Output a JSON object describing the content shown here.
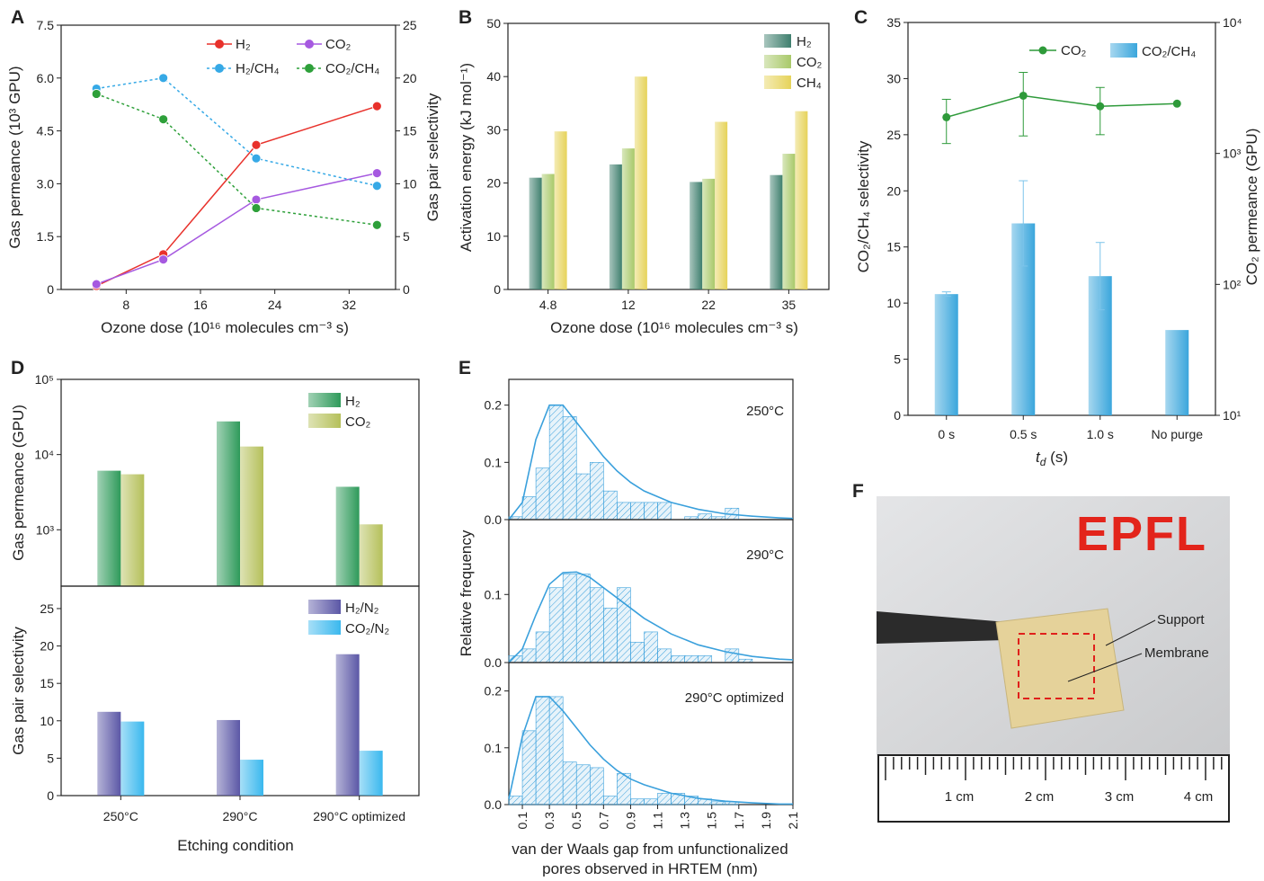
{
  "chart_data": [
    {
      "label": "A",
      "type": "line",
      "xlabel": "Ozone dose (10¹⁶ molecules cm⁻³ s)",
      "ylabel": "Gas permeance (10³ GPU)",
      "y2label": "Gas pair selectivity",
      "x": [
        4.8,
        12,
        22,
        35
      ],
      "xlim": [
        1,
        37
      ],
      "xticks": [
        8,
        16,
        24,
        32
      ],
      "ylim": [
        0,
        7.5
      ],
      "yticks": [
        0,
        1.5,
        {
          "value": 3,
          "label": "3.0"
        },
        4.5,
        {
          "value": 6,
          "label": "6.0"
        },
        7.5
      ],
      "y2lim": [
        0,
        25
      ],
      "y2ticks": [
        0,
        5,
        10,
        15,
        20,
        25
      ],
      "series": [
        {
          "name": "H₂",
          "color": "#e8312b",
          "line_style": "solid",
          "values": [
            0.1,
            1.0,
            4.1,
            5.2
          ]
        },
        {
          "name": "CO₂",
          "color": "#a659e0",
          "line_style": "solid",
          "values": [
            0.15,
            0.85,
            2.55,
            3.3
          ]
        },
        {
          "name": "H₂/CH₄",
          "color": "#36a9e6",
          "line_style": "dotted",
          "axis": "y2",
          "values": [
            19,
            20,
            12.4,
            9.8
          ]
        },
        {
          "name": "CO₂/CH₄",
          "color": "#2ea03a",
          "line_style": "dotted",
          "axis": "y2",
          "values": [
            18.5,
            16.1,
            7.7,
            6.1
          ]
        }
      ]
    },
    {
      "label": "B",
      "type": "bar",
      "xlabel": "Ozone dose (10¹⁶ molecules cm⁻³ s)",
      "ylabel": "Activation energy (kJ mol⁻¹)",
      "categories": [
        "4.8",
        "12",
        "22",
        "35"
      ],
      "ylim": [
        0,
        50
      ],
      "yticks": [
        0,
        10,
        20,
        30,
        40,
        50
      ],
      "series": [
        {
          "name": "H₂",
          "color": "#3f7f6e",
          "values": [
            21,
            23.5,
            20.2,
            21.5
          ]
        },
        {
          "name": "CO₂",
          "color": "#a9c96a",
          "values": [
            21.7,
            26.5,
            20.8,
            25.5
          ]
        },
        {
          "name": "CH₄",
          "color": "#e6d35a",
          "values": [
            29.7,
            40,
            31.5,
            33.5
          ]
        }
      ]
    },
    {
      "label": "C",
      "type": "bar_line",
      "xlabel_parts": [
        "t",
        "d",
        " (s)"
      ],
      "ylabel": "CO₂/CH₄ selectivity",
      "y2label": "CO₂ permeance (GPU)",
      "categories": [
        "0 s",
        "0.5 s",
        "1.0 s",
        "No purge"
      ],
      "ylim": [
        0,
        35
      ],
      "yticks": [
        0,
        5,
        10,
        15,
        20,
        25,
        30,
        35
      ],
      "y2lim": [
        10,
        10000
      ],
      "y2_scale": "log",
      "y2ticks": [
        {
          "value": 10,
          "label": "10¹"
        },
        {
          "value": 100,
          "label": "10²"
        },
        {
          "value": 1000,
          "label": "10³"
        },
        {
          "value": 10000,
          "label": "10⁴"
        }
      ],
      "series": [
        {
          "name": "CO₂",
          "kind": "line",
          "axis": "y2",
          "color": "#2e9a3a",
          "values": [
            1890,
            2760,
            2290,
            2400
          ],
          "errors": [
            700,
            1400,
            900,
            null
          ]
        },
        {
          "name": "CO₂/CH₄",
          "kind": "bar",
          "color": "#3aa6dc",
          "values": [
            10.8,
            17.1,
            12.4,
            7.6
          ],
          "errors": [
            0.2,
            3.8,
            3.0,
            null
          ]
        }
      ]
    },
    {
      "label": "D",
      "type": "bar",
      "xlabel": "Etching condition",
      "categories": [
        "250°C",
        "290°C",
        "290°C optimized"
      ],
      "panels": [
        {
          "ylabel": "Gas permeance (GPU)",
          "yscale": "log",
          "ylim": [
            178,
            100000
          ],
          "yticks": [
            {
              "value": 1000,
              "label": "10³"
            },
            {
              "value": 10000,
              "label": "10⁴"
            },
            {
              "value": 100000,
              "label": "10⁵"
            }
          ],
          "series": [
            {
              "name": "H₂",
              "color": "#2e9a5a",
              "values": [
                6100,
                27600,
                3730
              ]
            },
            {
              "name": "CO₂",
              "color": "#b5c05a",
              "values": [
                5470,
                12800,
                1180
              ]
            }
          ]
        },
        {
          "ylabel": "Gas pair selectivity",
          "ylim": [
            0,
            28
          ],
          "yticks": [
            0,
            5,
            10,
            15,
            20,
            25
          ],
          "series": [
            {
              "name": "H₂/N₂",
              "color": "#5b57a6",
              "values": [
                11.2,
                10.1,
                18.9
              ]
            },
            {
              "name": "CO₂/N₂",
              "color": "#3ab8ee",
              "values": [
                9.9,
                4.8,
                6.0
              ]
            }
          ]
        }
      ]
    },
    {
      "label": "E",
      "type": "histogram",
      "xlabel": [
        "van der Waals gap from unfunctionalized",
        "pores observed in HRTEM (nm)"
      ],
      "ylabel": "Relative frequency",
      "color": "#3aa0dc",
      "xlim": [
        0,
        2.1
      ],
      "xticks": [
        0.1,
        0.3,
        0.5,
        0.7,
        0.9,
        1.1,
        1.3,
        1.5,
        1.7,
        1.9,
        2.1
      ],
      "bins": [
        0,
        0.1,
        0.2,
        0.3,
        0.4,
        0.5,
        0.6,
        0.7,
        0.8,
        0.9,
        1.0,
        1.1,
        1.2,
        1.3,
        1.4,
        1.5,
        1.6,
        1.7,
        1.8,
        1.9,
        2.0,
        2.1
      ],
      "fit_x": [
        0,
        0.1,
        0.2,
        0.3,
        0.4,
        0.5,
        0.6,
        0.7,
        0.8,
        0.9,
        1.0,
        1.2,
        1.4,
        1.6,
        1.8,
        2.0,
        2.1
      ],
      "panels": [
        {
          "name": "250°C",
          "ylim": [
            0,
            0.245
          ],
          "yticks": [
            {
              "value": 0,
              "label": "0.0"
            },
            0.1,
            0.2
          ],
          "values": [
            0.005,
            0.04,
            0.09,
            0.2,
            0.18,
            0.08,
            0.1,
            0.05,
            0.03,
            0.03,
            0.03,
            0.03,
            0,
            0.005,
            0.01,
            0.005,
            0.02,
            0,
            0,
            0,
            0
          ],
          "fit": [
            0,
            0.03,
            0.14,
            0.2,
            0.2,
            0.17,
            0.14,
            0.11,
            0.085,
            0.065,
            0.05,
            0.03,
            0.018,
            0.01,
            0.006,
            0.003,
            0.002
          ]
        },
        {
          "name": "290°C",
          "ylim": [
            0,
            0.21
          ],
          "yticks": [
            {
              "value": 0,
              "label": "0.0"
            },
            0.1
          ],
          "values": [
            0.01,
            0.02,
            0.045,
            0.11,
            0.13,
            0.13,
            0.11,
            0.08,
            0.11,
            0.03,
            0.045,
            0.02,
            0.01,
            0.01,
            0.01,
            0,
            0.02,
            0.005,
            0,
            0,
            0
          ],
          "fit": [
            0,
            0.02,
            0.07,
            0.115,
            0.132,
            0.133,
            0.125,
            0.11,
            0.095,
            0.08,
            0.065,
            0.042,
            0.026,
            0.016,
            0.009,
            0.005,
            0.004
          ]
        },
        {
          "name": "290°C optimized",
          "ylim": [
            0,
            0.25
          ],
          "yticks": [
            {
              "value": 0,
              "label": "0.0"
            },
            0.1,
            0.2
          ],
          "values": [
            0.015,
            0.13,
            0.19,
            0.19,
            0.075,
            0.07,
            0.065,
            0.015,
            0.055,
            0.01,
            0.01,
            0.02,
            0.02,
            0.015,
            0.01,
            0.005,
            0.005,
            0,
            0,
            0,
            0
          ],
          "fit": [
            0.01,
            0.12,
            0.19,
            0.19,
            0.165,
            0.135,
            0.105,
            0.08,
            0.06,
            0.045,
            0.035,
            0.02,
            0.011,
            0.006,
            0.003,
            0.001,
            0.001
          ]
        }
      ]
    }
  ],
  "photo": {
    "label": "F",
    "logo": "EPFL",
    "annotations": [
      "Support",
      "Membrane"
    ],
    "ruler_labels": [
      "1 cm",
      "2 cm",
      "3 cm",
      "4 cm"
    ]
  }
}
